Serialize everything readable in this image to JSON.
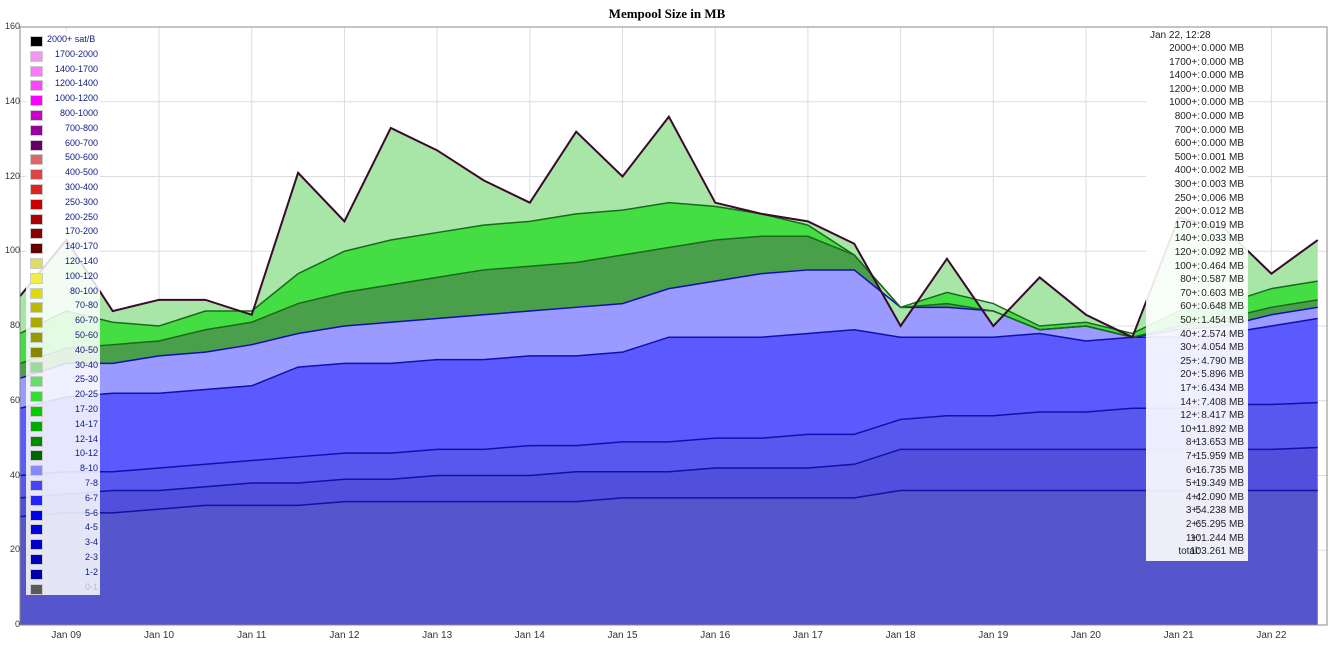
{
  "chart_data": {
    "type": "area",
    "title": "Mempool Size in MB",
    "xlabel": "",
    "ylabel": "",
    "ylim": [
      0,
      160
    ],
    "yticks": [
      0,
      20,
      40,
      60,
      80,
      100,
      120,
      140,
      160
    ],
    "grid": true,
    "stacked": true,
    "legend_position": "left",
    "x_days": [
      8.5,
      9,
      9.5,
      10,
      10.5,
      11,
      11.5,
      12,
      12.5,
      13,
      13.5,
      14,
      14.5,
      15,
      15.5,
      16,
      16.5,
      17,
      17.5,
      18,
      18.5,
      19,
      19.5,
      20,
      20.5,
      21,
      21.5,
      22,
      22.5
    ],
    "xtick_labels": [
      "Jan 09",
      "Jan 10",
      "Jan 11",
      "Jan 12",
      "Jan 13",
      "Jan 14",
      "Jan 15",
      "Jan 16",
      "Jan 17",
      "Jan 18",
      "Jan 19",
      "Jan 20",
      "Jan 21",
      "Jan 22"
    ],
    "xtick_positions": [
      9,
      10,
      11,
      12,
      13,
      14,
      15,
      16,
      17,
      18,
      19,
      20,
      21,
      22
    ],
    "cumulative_levels": [
      {
        "name": "3+",
        "values": [
          29,
          30,
          30,
          31,
          32,
          32,
          32,
          33,
          33,
          33,
          33,
          33,
          33,
          34,
          34,
          34,
          34,
          34,
          34,
          36,
          36,
          36,
          36,
          36,
          36,
          36,
          36,
          36,
          36
        ]
      },
      {
        "name": "4+",
        "values": [
          34,
          35,
          36,
          36,
          37,
          38,
          38,
          39,
          39,
          40,
          40,
          40,
          41,
          41,
          41,
          42,
          42,
          42,
          43,
          47,
          47,
          47,
          47,
          47,
          47,
          47,
          47,
          47,
          47.5
        ]
      },
      {
        "name": "5+",
        "values": [
          40,
          41,
          41,
          42,
          43,
          44,
          45,
          46,
          46,
          47,
          47,
          48,
          48,
          49,
          49,
          50,
          50,
          51,
          51,
          55,
          56,
          56,
          57,
          57,
          58,
          58,
          59,
          59,
          59.5
        ]
      },
      {
        "name": "6+",
        "values": [
          58,
          61,
          62,
          62,
          63,
          64,
          69,
          70,
          70,
          71,
          71,
          72,
          72,
          73,
          77,
          77,
          77,
          78,
          79,
          77,
          77,
          77,
          78,
          76,
          77,
          77,
          78,
          80,
          82
        ]
      },
      {
        "name": "8+",
        "values": [
          66,
          70,
          70,
          72,
          73,
          75,
          78,
          80,
          81,
          82,
          83,
          84,
          85,
          86,
          90,
          92,
          94,
          95,
          95,
          85,
          85,
          84,
          79,
          80,
          77,
          79,
          80,
          83,
          85
        ]
      },
      {
        "name": "10+",
        "values": [
          70,
          74,
          75,
          76,
          79,
          81,
          86,
          89,
          91,
          93,
          95,
          96,
          97,
          99,
          101,
          103,
          104,
          104,
          99,
          85,
          86,
          84,
          79,
          80,
          77,
          80,
          82,
          85,
          87
        ]
      },
      {
        "name": "20+",
        "values": [
          78,
          84,
          81,
          80,
          84,
          84,
          94,
          100,
          103,
          105,
          107,
          108,
          110,
          111,
          113,
          112,
          110,
          107,
          99,
          85,
          89,
          86,
          80,
          81,
          78,
          84,
          86,
          90,
          92
        ]
      },
      {
        "name": "total",
        "values": [
          88,
          103,
          84,
          87,
          87,
          83,
          121,
          108,
          133,
          127,
          119,
          113,
          132,
          120,
          136,
          113,
          110,
          108,
          102,
          80,
          98,
          80,
          93,
          83,
          77,
          109,
          106,
          94,
          103
        ]
      }
    ],
    "series": [
      {
        "name": "0-1",
        "color": "#5a5a5a"
      },
      {
        "name": "1-2",
        "color": "#0000aa"
      },
      {
        "name": "2-3",
        "color": "#0000bb"
      },
      {
        "name": "3-4",
        "color": "#0000cc"
      },
      {
        "name": "4-5",
        "color": "#0000dd"
      },
      {
        "name": "5-6",
        "color": "#0000ee"
      },
      {
        "name": "6-7",
        "color": "#2222ff"
      },
      {
        "name": "7-8",
        "color": "#4444ff"
      },
      {
        "name": "8-10",
        "color": "#8888ff"
      },
      {
        "name": "10-12",
        "color": "#006600"
      },
      {
        "name": "12-14",
        "color": "#008800"
      },
      {
        "name": "14-17",
        "color": "#00aa00"
      },
      {
        "name": "17-20",
        "color": "#00cc00"
      },
      {
        "name": "20-25",
        "color": "#33dd33"
      },
      {
        "name": "25-30",
        "color": "#66dd66"
      },
      {
        "name": "30-40",
        "color": "#99dd99"
      },
      {
        "name": "40-50",
        "color": "#888800"
      },
      {
        "name": "50-60",
        "color": "#999900"
      },
      {
        "name": "60-70",
        "color": "#aaaa00"
      },
      {
        "name": "70-80",
        "color": "#bbbb00"
      },
      {
        "name": "80-100",
        "color": "#dddd00"
      },
      {
        "name": "100-120",
        "color": "#eeee44"
      },
      {
        "name": "120-140",
        "color": "#dddd66"
      },
      {
        "name": "140-170",
        "color": "#660000"
      },
      {
        "name": "170-200",
        "color": "#880000"
      },
      {
        "name": "200-250",
        "color": "#aa0000"
      },
      {
        "name": "250-300",
        "color": "#cc0000"
      },
      {
        "name": "300-400",
        "color": "#dd2222"
      },
      {
        "name": "400-500",
        "color": "#dd4444"
      },
      {
        "name": "500-600",
        "color": "#dd6666"
      },
      {
        "name": "600-700",
        "color": "#660066"
      },
      {
        "name": "700-800",
        "color": "#990099"
      },
      {
        "name": "800-1000",
        "color": "#cc00cc"
      },
      {
        "name": "1000-1200",
        "color": "#ff00ff"
      },
      {
        "name": "1200-1400",
        "color": "#ff44ff"
      },
      {
        "name": "1400-1700",
        "color": "#ff77ff"
      },
      {
        "name": "1700-2000",
        "color": "#ee99ee"
      },
      {
        "name": "2000+ sat/B",
        "color": "#000000"
      }
    ],
    "tooltip": {
      "date": "Jan 22, 12:28",
      "rows": [
        {
          "key": "2000+:",
          "value": "0.000 MB"
        },
        {
          "key": "1700+:",
          "value": "0.000 MB"
        },
        {
          "key": "1400+:",
          "value": "0.000 MB"
        },
        {
          "key": "1200+:",
          "value": "0.000 MB"
        },
        {
          "key": "1000+:",
          "value": "0.000 MB"
        },
        {
          "key": "800+:",
          "value": "0.000 MB"
        },
        {
          "key": "700+:",
          "value": "0.000 MB"
        },
        {
          "key": "600+:",
          "value": "0.000 MB"
        },
        {
          "key": "500+:",
          "value": "0.001 MB"
        },
        {
          "key": "400+:",
          "value": "0.002 MB"
        },
        {
          "key": "300+:",
          "value": "0.003 MB"
        },
        {
          "key": "250+:",
          "value": "0.006 MB"
        },
        {
          "key": "200+:",
          "value": "0.012 MB"
        },
        {
          "key": "170+:",
          "value": "0.019 MB"
        },
        {
          "key": "140+:",
          "value": "0.033 MB"
        },
        {
          "key": "120+:",
          "value": "0.092 MB"
        },
        {
          "key": "100+:",
          "value": "0.464 MB"
        },
        {
          "key": "80+:",
          "value": "0.587 MB"
        },
        {
          "key": "70+:",
          "value": "0.603 MB"
        },
        {
          "key": "60+:",
          "value": "0.648 MB"
        },
        {
          "key": "50+:",
          "value": "1.454 MB"
        },
        {
          "key": "40+:",
          "value": "2.574 MB"
        },
        {
          "key": "30+:",
          "value": "4.054 MB"
        },
        {
          "key": "25+:",
          "value": "4.790 MB"
        },
        {
          "key": "20+:",
          "value": "5.896 MB"
        },
        {
          "key": "17+:",
          "value": "6.434 MB"
        },
        {
          "key": "14+:",
          "value": "7.408 MB"
        },
        {
          "key": "12+:",
          "value": "8.417 MB"
        },
        {
          "key": "10+:",
          "value": "11.892 MB"
        },
        {
          "key": "8+:",
          "value": "13.653 MB"
        },
        {
          "key": "7+:",
          "value": "15.959 MB"
        },
        {
          "key": "6+:",
          "value": "16.735 MB"
        },
        {
          "key": "5+:",
          "value": "19.349 MB"
        },
        {
          "key": "4+:",
          "value": "42.090 MB"
        },
        {
          "key": "3+:",
          "value": "54.238 MB"
        },
        {
          "key": "2+:",
          "value": "65.295 MB"
        },
        {
          "key": "1+:",
          "value": "101.244 MB"
        },
        {
          "key": "total:",
          "value": "103.261 MB"
        }
      ]
    }
  }
}
